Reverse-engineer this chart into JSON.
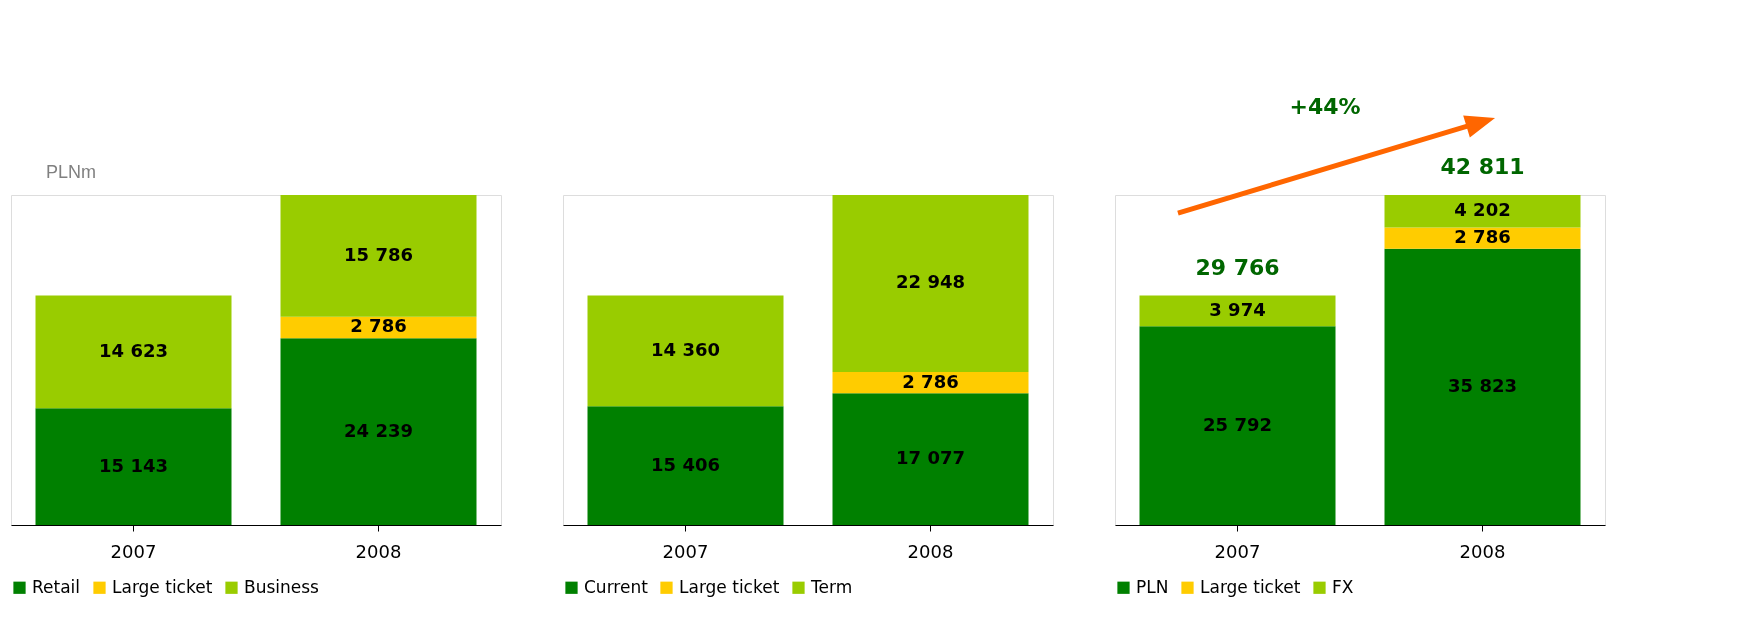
{
  "chart_data": [
    {
      "type": "bar",
      "stacked": true,
      "ylabel": "PLNm",
      "categories": [
        "2007",
        "2008"
      ],
      "legend": "bottom",
      "series": [
        {
          "name": "Retail",
          "color": "#008000",
          "values": [
            15143,
            24239
          ],
          "value_labels": [
            "15 143",
            "24 239"
          ]
        },
        {
          "name": "Large ticket",
          "color": "#ffcc00",
          "values": [
            null,
            2786
          ],
          "value_labels": [
            null,
            "2 786"
          ]
        },
        {
          "name": "Business",
          "color": "#99cc00",
          "values": [
            14623,
            15786
          ],
          "value_labels": [
            "14 623",
            "15 786"
          ]
        }
      ]
    },
    {
      "type": "bar",
      "stacked": true,
      "categories": [
        "2007",
        "2008"
      ],
      "legend": "bottom",
      "series": [
        {
          "name": "Current",
          "color": "#008000",
          "values": [
            15406,
            17077
          ],
          "value_labels": [
            "15 406",
            "17 077"
          ]
        },
        {
          "name": "Large ticket",
          "color": "#ffcc00",
          "values": [
            null,
            2786
          ],
          "value_labels": [
            null,
            "2 786"
          ]
        },
        {
          "name": "Term",
          "color": "#99cc00",
          "values": [
            14360,
            22948
          ],
          "value_labels": [
            "14 360",
            "22 948"
          ]
        }
      ]
    },
    {
      "type": "bar",
      "stacked": true,
      "categories": [
        "2007",
        "2008"
      ],
      "legend": "bottom",
      "totals": [
        "29 766",
        "42 811"
      ],
      "annotations": [
        "+44%"
      ],
      "series": [
        {
          "name": "PLN",
          "color": "#008000",
          "values": [
            25792,
            35823
          ],
          "value_labels": [
            "25 792",
            "35 823"
          ]
        },
        {
          "name": "Large ticket",
          "color": "#ffcc00",
          "values": [
            null,
            2786
          ],
          "value_labels": [
            null,
            "2 786"
          ]
        },
        {
          "name": "FX",
          "color": "#99cc00",
          "values": [
            3974,
            4202
          ],
          "value_labels": [
            "3 974",
            "4 202"
          ]
        }
      ]
    }
  ]
}
